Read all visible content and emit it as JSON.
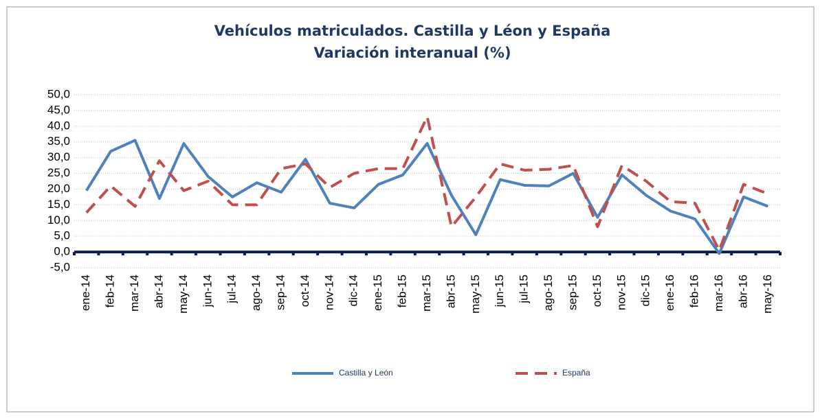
{
  "chart_data": {
    "type": "line",
    "title": "Vehículos matriculados. Castilla y Léon y España",
    "subtitle": "Variación interanual (%)",
    "categories": [
      "ene-14",
      "feb-14",
      "mar-14",
      "abr-14",
      "may-14",
      "jun-14",
      "jul-14",
      "ago-14",
      "sep-14",
      "oct-14",
      "nov-14",
      "dic-14",
      "ene-15",
      "feb-15",
      "mar-15",
      "abr-15",
      "may-15",
      "jun-15",
      "jul-15",
      "ago-15",
      "sep-15",
      "oct-15",
      "nov-15",
      "dic-15",
      "ene-16",
      "feb-16",
      "mar-16",
      "abr-16",
      "may-16"
    ],
    "series": [
      {
        "name": "Castilla y León",
        "color": "#4f81bd",
        "dashed": false,
        "values": [
          19.5,
          32,
          35.5,
          17,
          34.5,
          24,
          17.5,
          22,
          19,
          29.5,
          15.5,
          14,
          21.5,
          24.5,
          34.5,
          18,
          5.5,
          23,
          21.2,
          21,
          25,
          11,
          24.5,
          18,
          13,
          10.5,
          -0.5,
          17.5,
          14.5
        ]
      },
      {
        "name": "España",
        "color": "#c0504d",
        "dashed": true,
        "values": [
          12.5,
          21,
          14.5,
          29,
          19.5,
          22.5,
          15,
          15,
          26.5,
          28,
          20.5,
          25,
          26.5,
          26.5,
          43,
          8,
          17.5,
          28,
          26,
          26.3,
          27.5,
          8,
          27.5,
          22.5,
          16,
          15.5,
          0.5,
          21.5,
          18.5
        ]
      }
    ],
    "ylim": [
      -5,
      50
    ],
    "yticks": [
      {
        "value": -5,
        "label": "-5,0"
      },
      {
        "value": 0,
        "label": "0,0"
      },
      {
        "value": 5,
        "label": "5,0"
      },
      {
        "value": 10,
        "label": "10,0"
      },
      {
        "value": 15,
        "label": "15,0"
      },
      {
        "value": 20,
        "label": "20,0"
      },
      {
        "value": 25,
        "label": "25,0"
      },
      {
        "value": 30,
        "label": "30,0"
      },
      {
        "value": 35,
        "label": "35,0"
      },
      {
        "value": 40,
        "label": "40,0"
      },
      {
        "value": 45,
        "label": "45,0"
      },
      {
        "value": 50,
        "label": "50,0"
      }
    ],
    "grid": true,
    "legend": "bottom"
  }
}
